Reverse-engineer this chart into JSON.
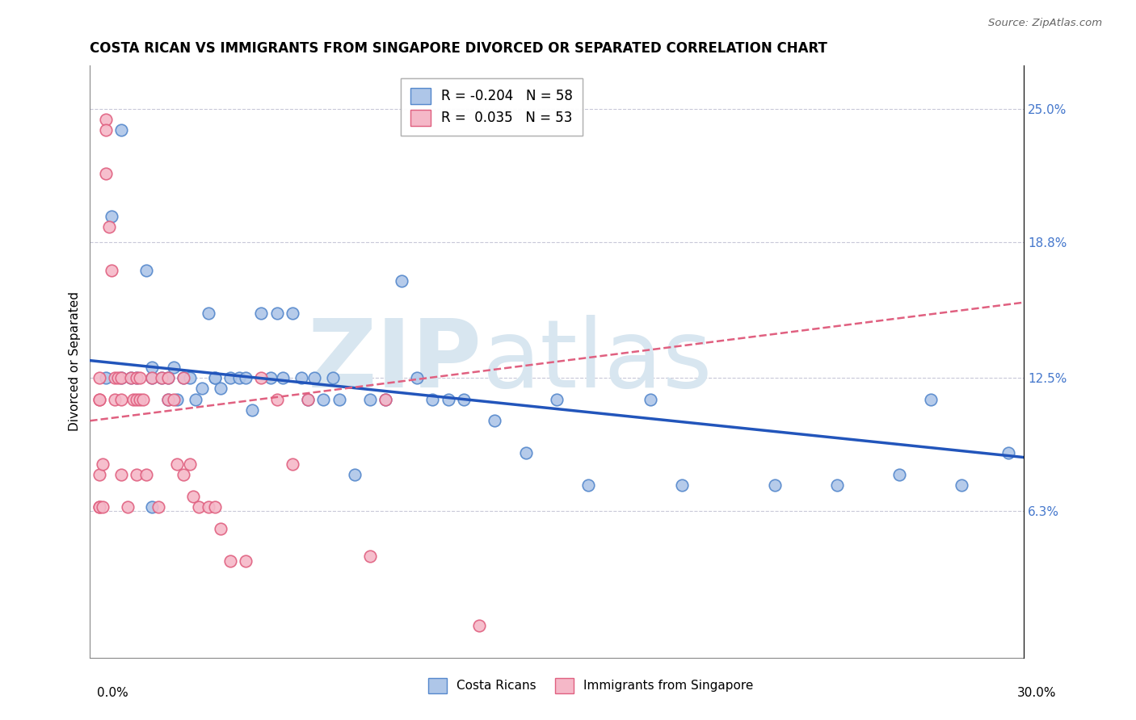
{
  "title": "COSTA RICAN VS IMMIGRANTS FROM SINGAPORE DIVORCED OR SEPARATED CORRELATION CHART",
  "source": "Source: ZipAtlas.com",
  "ylabel": "Divorced or Separated",
  "xlim": [
    0.0,
    0.3
  ],
  "ylim": [
    -0.005,
    0.27
  ],
  "ytick_labels_right": [
    "6.3%",
    "12.5%",
    "18.8%",
    "25.0%"
  ],
  "ytick_values_right": [
    0.063,
    0.125,
    0.188,
    0.25
  ],
  "legend_blue_r": "R = -0.204",
  "legend_blue_n": "N = 58",
  "legend_pink_r": "R =  0.035",
  "legend_pink_n": "N = 53",
  "legend_label_blue": "Costa Ricans",
  "legend_label_pink": "Immigrants from Singapore",
  "blue_color": "#aec6e8",
  "blue_edge_color": "#5588cc",
  "pink_color": "#f5b8c8",
  "pink_edge_color": "#e06080",
  "blue_line_color": "#2255bb",
  "pink_line_color": "#e06080",
  "watermark_color": "#d8e6f0",
  "watermark_text": "ZIPatlas",
  "blue_scatter_x": [
    0.005,
    0.007,
    0.01,
    0.01,
    0.013,
    0.015,
    0.018,
    0.02,
    0.02,
    0.02,
    0.023,
    0.025,
    0.025,
    0.027,
    0.028,
    0.03,
    0.032,
    0.034,
    0.036,
    0.038,
    0.04,
    0.04,
    0.042,
    0.045,
    0.048,
    0.05,
    0.052,
    0.055,
    0.058,
    0.06,
    0.062,
    0.065,
    0.068,
    0.07,
    0.072,
    0.075,
    0.078,
    0.08,
    0.085,
    0.09,
    0.095,
    0.1,
    0.105,
    0.11,
    0.115,
    0.12,
    0.13,
    0.14,
    0.15,
    0.16,
    0.18,
    0.19,
    0.22,
    0.24,
    0.26,
    0.27,
    0.28,
    0.295
  ],
  "blue_scatter_y": [
    0.125,
    0.2,
    0.24,
    0.125,
    0.125,
    0.125,
    0.175,
    0.125,
    0.13,
    0.065,
    0.125,
    0.125,
    0.115,
    0.13,
    0.115,
    0.125,
    0.125,
    0.115,
    0.12,
    0.155,
    0.125,
    0.125,
    0.12,
    0.125,
    0.125,
    0.125,
    0.11,
    0.155,
    0.125,
    0.155,
    0.125,
    0.155,
    0.125,
    0.115,
    0.125,
    0.115,
    0.125,
    0.115,
    0.08,
    0.115,
    0.115,
    0.17,
    0.125,
    0.115,
    0.115,
    0.115,
    0.105,
    0.09,
    0.115,
    0.075,
    0.115,
    0.075,
    0.075,
    0.075,
    0.08,
    0.115,
    0.075,
    0.09
  ],
  "pink_scatter_x": [
    0.003,
    0.003,
    0.003,
    0.003,
    0.003,
    0.003,
    0.004,
    0.004,
    0.005,
    0.005,
    0.005,
    0.006,
    0.007,
    0.008,
    0.008,
    0.009,
    0.01,
    0.01,
    0.01,
    0.012,
    0.013,
    0.014,
    0.015,
    0.015,
    0.015,
    0.016,
    0.016,
    0.017,
    0.018,
    0.02,
    0.022,
    0.023,
    0.025,
    0.025,
    0.027,
    0.028,
    0.03,
    0.03,
    0.032,
    0.033,
    0.035,
    0.038,
    0.04,
    0.042,
    0.045,
    0.05,
    0.055,
    0.06,
    0.065,
    0.07,
    0.09,
    0.095,
    0.125
  ],
  "pink_scatter_y": [
    0.125,
    0.115,
    0.115,
    0.08,
    0.065,
    0.065,
    0.085,
    0.065,
    0.245,
    0.24,
    0.22,
    0.195,
    0.175,
    0.125,
    0.115,
    0.125,
    0.125,
    0.115,
    0.08,
    0.065,
    0.125,
    0.115,
    0.125,
    0.115,
    0.08,
    0.125,
    0.115,
    0.115,
    0.08,
    0.125,
    0.065,
    0.125,
    0.125,
    0.115,
    0.115,
    0.085,
    0.125,
    0.08,
    0.085,
    0.07,
    0.065,
    0.065,
    0.065,
    0.055,
    0.04,
    0.04,
    0.125,
    0.115,
    0.085,
    0.115,
    0.042,
    0.115,
    0.01
  ],
  "blue_trend_x": [
    0.0,
    0.3
  ],
  "blue_trend_y_start": 0.133,
  "blue_trend_y_end": 0.088,
  "pink_trend_x": [
    0.0,
    0.3
  ],
  "pink_trend_y_start": 0.105,
  "pink_trend_y_end": 0.16
}
